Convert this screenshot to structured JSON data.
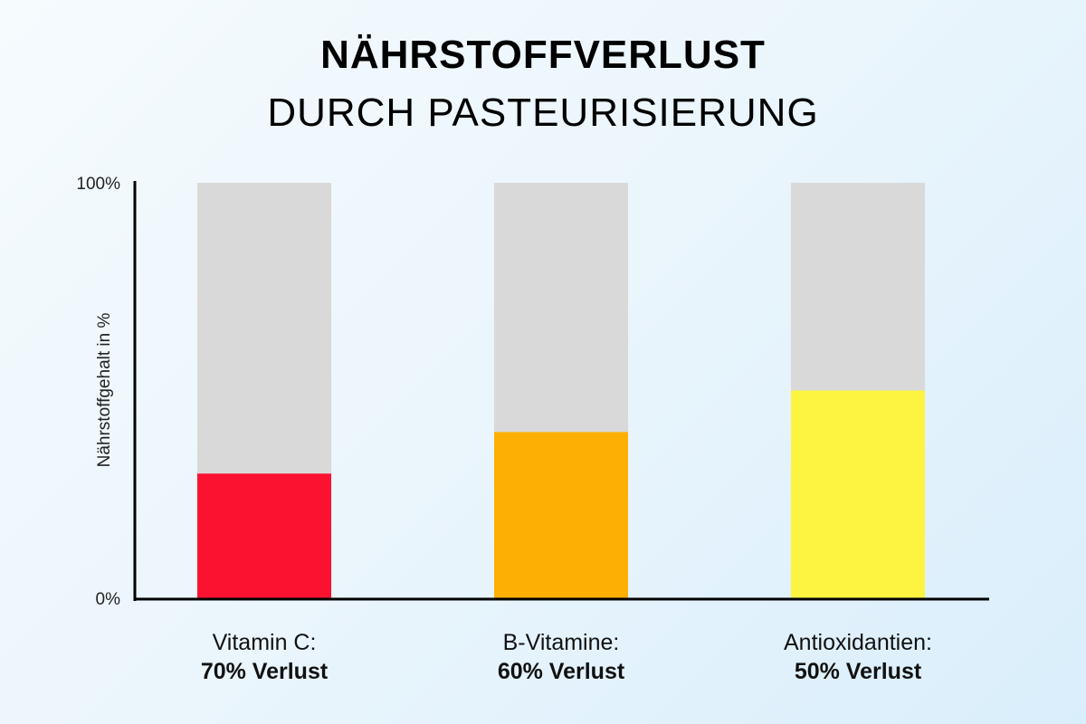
{
  "chart_data": {
    "type": "bar",
    "title": "NÄHRSTOFFVERLUST",
    "subtitle": "DURCH PASTEURISIERUNG",
    "ylabel": "Nährstoffgehalt in %",
    "ylim": [
      0,
      100
    ],
    "y_ticks": [
      "0%",
      "100%"
    ],
    "categories": [
      "Vitamin C:",
      "B-Vitamine:",
      "Antioxidantien:"
    ],
    "loss_labels": [
      "70% Verlust",
      "60% Verlust",
      "50% Verlust"
    ],
    "values": [
      30,
      40,
      50
    ],
    "background_value": 100,
    "colors": [
      "#fb1230",
      "#fdb003",
      "#fcf440"
    ],
    "background_color": "#d9d9d9",
    "grid": false,
    "legend": "none"
  }
}
